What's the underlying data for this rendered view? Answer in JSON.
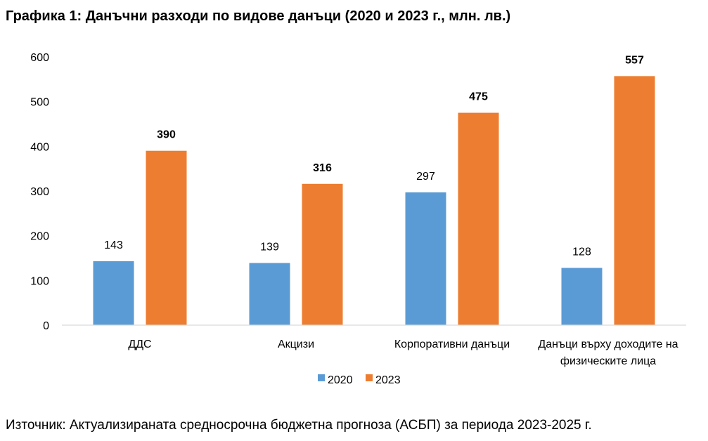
{
  "title": "Графика 1: Данъчни разходи по видове данъци (2020 и 2023 г., млн. лв.)",
  "source": "Източник: Актуализираната средносрочна бюджетна прогноза (АСБП) за периода 2023-2025 г.",
  "chart_data": {
    "type": "bar",
    "title": "Графика 1: Данъчни разходи по видове данъци (2020 и 2023 г., млн. лв.)",
    "categories": [
      [
        "ДДС"
      ],
      [
        "Акцизи"
      ],
      [
        "Корпоративни данъци"
      ],
      [
        "Данъци върху доходите на",
        "физическите лица"
      ]
    ],
    "series": [
      {
        "name": "2020",
        "values": [
          143,
          139,
          297,
          128
        ],
        "color": "#5B9BD5",
        "label_bold": false
      },
      {
        "name": "2023",
        "values": [
          390,
          316,
          475,
          557
        ],
        "color": "#ED7D31",
        "label_bold": true
      }
    ],
    "ylim": [
      0,
      600
    ],
    "yticks": [
      0,
      100,
      200,
      300,
      400,
      500,
      600
    ],
    "grid": false,
    "legend": "bottom"
  }
}
